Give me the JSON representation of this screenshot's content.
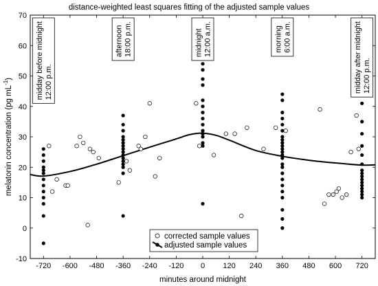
{
  "chart_data": {
    "type": "scatter",
    "title": "distance-weighted least squares fitting of the adjusted sample values",
    "xlabel": "minutes around midnight",
    "ylabel": "melatonin concentration (pg mL",
    "ylabel_sup": "-1",
    "ylabel_end": ")",
    "xlim": [
      -780,
      780
    ],
    "ylim": [
      -10,
      70
    ],
    "xticks": [
      -720,
      -600,
      -480,
      -360,
      -240,
      -120,
      0,
      120,
      240,
      360,
      480,
      600,
      720
    ],
    "yticks": [
      -10,
      0,
      10,
      20,
      30,
      40,
      50,
      60,
      70
    ],
    "grid": false,
    "legend_position": "bottom-center",
    "annotations": [
      {
        "x": -720,
        "lines": [
          "midday before midnight",
          "12:00 p.m."
        ]
      },
      {
        "x": -360,
        "lines": [
          "afternoon",
          "18:00 p.m."
        ]
      },
      {
        "x": 0,
        "lines": [
          "midnight",
          "12:00 a.m."
        ]
      },
      {
        "x": 360,
        "lines": [
          "morning",
          "6:00 a.m."
        ]
      },
      {
        "x": 720,
        "lines": [
          "midday after midnight",
          "12:00 p.m."
        ]
      }
    ],
    "series": [
      {
        "name": "corrected sample values",
        "marker": "open-circle",
        "points": [
          [
            -695,
            27
          ],
          [
            -680,
            12
          ],
          [
            -660,
            16
          ],
          [
            -620,
            14
          ],
          [
            -610,
            14
          ],
          [
            -570,
            27
          ],
          [
            -555,
            30
          ],
          [
            -540,
            28
          ],
          [
            -520,
            1
          ],
          [
            -510,
            26
          ],
          [
            -495,
            25
          ],
          [
            -470,
            23
          ],
          [
            -380,
            15
          ],
          [
            -345,
            22
          ],
          [
            -330,
            19
          ],
          [
            -290,
            27
          ],
          [
            -280,
            26
          ],
          [
            -260,
            30
          ],
          [
            -240,
            41
          ],
          [
            -215,
            17
          ],
          [
            -195,
            23
          ],
          [
            -30,
            41
          ],
          [
            -15,
            27
          ],
          [
            50,
            24
          ],
          [
            105,
            31
          ],
          [
            145,
            31
          ],
          [
            175,
            4
          ],
          [
            200,
            33
          ],
          [
            275,
            26
          ],
          [
            330,
            33
          ],
          [
            375,
            32
          ],
          [
            530,
            39
          ],
          [
            550,
            8
          ],
          [
            570,
            11
          ],
          [
            590,
            11
          ],
          [
            605,
            12
          ],
          [
            615,
            13
          ],
          [
            630,
            10
          ],
          [
            650,
            11
          ],
          [
            670,
            25
          ],
          [
            695,
            37
          ],
          [
            705,
            26
          ]
        ]
      },
      {
        "name": "adjusted sample values",
        "marker": "filled-circle",
        "points": [
          [
            -720,
            26
          ],
          [
            -720,
            24
          ],
          [
            -720,
            22
          ],
          [
            -720,
            20
          ],
          [
            -720,
            19
          ],
          [
            -720,
            18
          ],
          [
            -720,
            16
          ],
          [
            -720,
            14
          ],
          [
            -720,
            12
          ],
          [
            -720,
            10
          ],
          [
            -720,
            8
          ],
          [
            -720,
            4
          ],
          [
            -720,
            -5
          ],
          [
            -360,
            37
          ],
          [
            -360,
            34
          ],
          [
            -360,
            32
          ],
          [
            -360,
            30
          ],
          [
            -360,
            29
          ],
          [
            -360,
            28
          ],
          [
            -360,
            27
          ],
          [
            -360,
            26
          ],
          [
            -360,
            25
          ],
          [
            -360,
            24
          ],
          [
            -360,
            23
          ],
          [
            -360,
            22
          ],
          [
            -360,
            21
          ],
          [
            -360,
            20
          ],
          [
            -360,
            18
          ],
          [
            -360,
            4
          ],
          [
            0,
            54
          ],
          [
            0,
            52
          ],
          [
            0,
            49
          ],
          [
            0,
            47
          ],
          [
            0,
            42
          ],
          [
            0,
            40
          ],
          [
            0,
            38
          ],
          [
            0,
            36
          ],
          [
            0,
            34
          ],
          [
            0,
            32
          ],
          [
            0,
            31
          ],
          [
            0,
            30
          ],
          [
            0,
            28
          ],
          [
            0,
            27
          ],
          [
            0,
            8
          ],
          [
            360,
            44
          ],
          [
            360,
            42
          ],
          [
            360,
            38
          ],
          [
            360,
            36
          ],
          [
            360,
            34
          ],
          [
            360,
            32
          ],
          [
            360,
            30
          ],
          [
            360,
            29
          ],
          [
            360,
            28
          ],
          [
            360,
            27
          ],
          [
            360,
            26
          ],
          [
            360,
            25
          ],
          [
            360,
            24
          ],
          [
            360,
            23
          ],
          [
            360,
            21
          ],
          [
            360,
            20
          ],
          [
            360,
            18
          ],
          [
            360,
            16
          ],
          [
            360,
            14
          ],
          [
            360,
            12
          ],
          [
            360,
            10
          ],
          [
            360,
            6
          ],
          [
            360,
            3
          ],
          [
            360,
            0
          ],
          [
            720,
            41
          ],
          [
            720,
            35
          ],
          [
            720,
            31
          ],
          [
            720,
            27
          ],
          [
            720,
            24
          ],
          [
            720,
            21
          ],
          [
            720,
            19
          ],
          [
            720,
            18
          ],
          [
            720,
            17
          ],
          [
            720,
            16
          ],
          [
            720,
            15
          ],
          [
            720,
            14
          ],
          [
            720,
            13
          ],
          [
            720,
            12
          ],
          [
            720,
            11
          ],
          [
            720,
            10
          ]
        ]
      },
      {
        "name": "",
        "marker": "line",
        "points": [
          [
            -780,
            17.6
          ],
          [
            -720,
            17.1
          ],
          [
            -600,
            18.6
          ],
          [
            -480,
            21.0
          ],
          [
            -360,
            23.8
          ],
          [
            -240,
            26.6
          ],
          [
            -120,
            29.3
          ],
          [
            -60,
            30.7
          ],
          [
            0,
            31.2
          ],
          [
            60,
            30.5
          ],
          [
            120,
            28.9
          ],
          [
            240,
            25.5
          ],
          [
            360,
            23.6
          ],
          [
            480,
            22.3
          ],
          [
            600,
            21.4
          ],
          [
            720,
            20.7
          ],
          [
            780,
            20.8
          ]
        ]
      }
    ]
  }
}
